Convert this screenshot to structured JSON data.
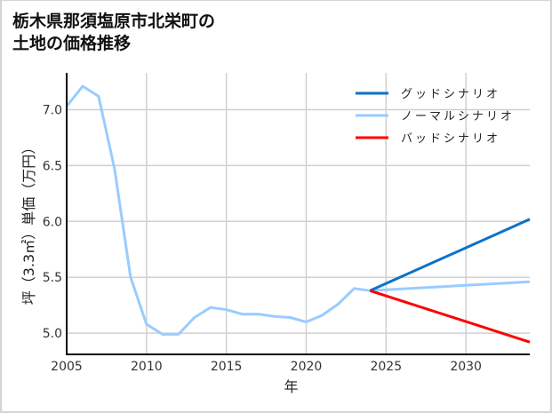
{
  "title": {
    "line1": "栃木県那須塩原市北栄町の",
    "line2": "土地の価格推移"
  },
  "colors": {
    "good": "#0b72c9",
    "normal": "#99ccff",
    "bad": "#ff0000",
    "grid": "#d0d0d0",
    "axis": "#000000"
  },
  "chart_data": {
    "type": "line",
    "title": "栃木県那須塩原市北栄町の土地の価格推移",
    "xlabel": "年",
    "ylabel": "坪（3.3㎡）単価（万円）",
    "xlim": [
      2005,
      2034
    ],
    "ylim": [
      4.81,
      7.33
    ],
    "xticks": [
      2005,
      2010,
      2015,
      2020,
      2025,
      2030
    ],
    "yticks": [
      5.0,
      5.5,
      6.0,
      6.5,
      7.0
    ],
    "ytick_labels": [
      "5.0",
      "5.5",
      "6.0",
      "6.5",
      "7.0"
    ],
    "grid": true,
    "legend_position": "upper right",
    "series": [
      {
        "name": "グッドシナリオ",
        "key": "good",
        "x": [
          2024,
          2034
        ],
        "values": [
          5.38,
          6.02
        ]
      },
      {
        "name": "ノーマルシナリオ",
        "key": "normal",
        "x": [
          2005,
          2006,
          2007,
          2008,
          2009,
          2010,
          2011,
          2012,
          2013,
          2014,
          2015,
          2016,
          2017,
          2018,
          2019,
          2020,
          2021,
          2022,
          2023,
          2024,
          2034
        ],
        "values": [
          7.03,
          7.21,
          7.12,
          6.47,
          5.5,
          5.08,
          4.99,
          4.99,
          5.14,
          5.23,
          5.21,
          5.17,
          5.17,
          5.15,
          5.14,
          5.1,
          5.16,
          5.26,
          5.4,
          5.38,
          5.46
        ]
      },
      {
        "name": "バッドシナリオ",
        "key": "bad",
        "x": [
          2024,
          2034
        ],
        "values": [
          5.38,
          4.92
        ]
      }
    ]
  }
}
